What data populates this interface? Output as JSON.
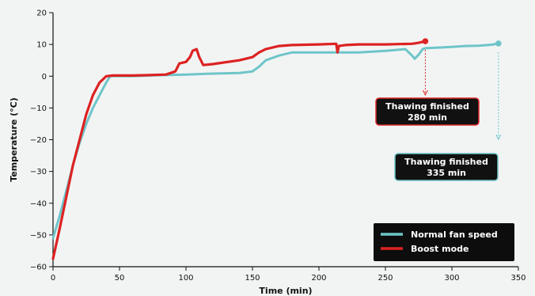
{
  "chart_data": {
    "type": "line",
    "title": "",
    "xlabel": "Time (min)",
    "ylabel": "Temperature (°C)",
    "xlim": [
      0,
      350
    ],
    "ylim": [
      -60,
      20
    ],
    "xticks": [
      0,
      50,
      100,
      150,
      200,
      250,
      300,
      350
    ],
    "yticks": [
      -60,
      -50,
      -40,
      -30,
      -20,
      -10,
      0,
      10,
      20
    ],
    "grid": false,
    "legend_position": "bottom-right",
    "series": [
      {
        "name": "Normal fan speed",
        "color": "#6ec5c9",
        "x": [
          0,
          5,
          10,
          15,
          20,
          25,
          30,
          35,
          40,
          43,
          46,
          50,
          60,
          80,
          100,
          120,
          140,
          150,
          155,
          160,
          170,
          180,
          200,
          215,
          230,
          250,
          265,
          270,
          272,
          275,
          278,
          280,
          290,
          300,
          310,
          320,
          330,
          335
        ],
        "y": [
          -51,
          -44,
          -36,
          -28,
          -21,
          -15,
          -10,
          -6,
          -2,
          0,
          0,
          0,
          0,
          0.3,
          0.5,
          0.8,
          1,
          1.5,
          3,
          5,
          6.5,
          7.5,
          7.5,
          7.5,
          7.5,
          8,
          8.5,
          6.5,
          5.5,
          6.8,
          8.5,
          8.8,
          9,
          9.2,
          9.5,
          9.6,
          9.9,
          10.3
        ],
        "end_marker": true
      },
      {
        "name": "Boost mode",
        "color": "#dd2222",
        "x": [
          0,
          5,
          10,
          15,
          20,
          25,
          30,
          35,
          40,
          45,
          50,
          60,
          70,
          85,
          92,
          95,
          100,
          103,
          105,
          108,
          110,
          113,
          120,
          140,
          150,
          155,
          160,
          170,
          180,
          200,
          213,
          214,
          215,
          220,
          230,
          240,
          250,
          260,
          270,
          275,
          280
        ],
        "y": [
          -57.5,
          -48,
          -38,
          -28,
          -20,
          -12,
          -6,
          -2,
          0,
          0.2,
          0.2,
          0.2,
          0.3,
          0.5,
          1.5,
          4,
          4.5,
          6,
          8,
          8.5,
          6,
          3.5,
          3.8,
          5,
          6,
          7.5,
          8.5,
          9.5,
          9.8,
          10,
          10.2,
          7.5,
          9.5,
          9.8,
          10,
          10,
          10,
          10.1,
          10.2,
          10.5,
          11
        ],
        "end_marker": true
      }
    ],
    "annotations": [
      {
        "line1": "Thawing finished",
        "line2": "280 min",
        "x": 280,
        "color": "#e02a2a"
      },
      {
        "line1": "Thawing finished",
        "line2": "335 min",
        "x": 335,
        "color": "#6ec5c9"
      }
    ]
  }
}
